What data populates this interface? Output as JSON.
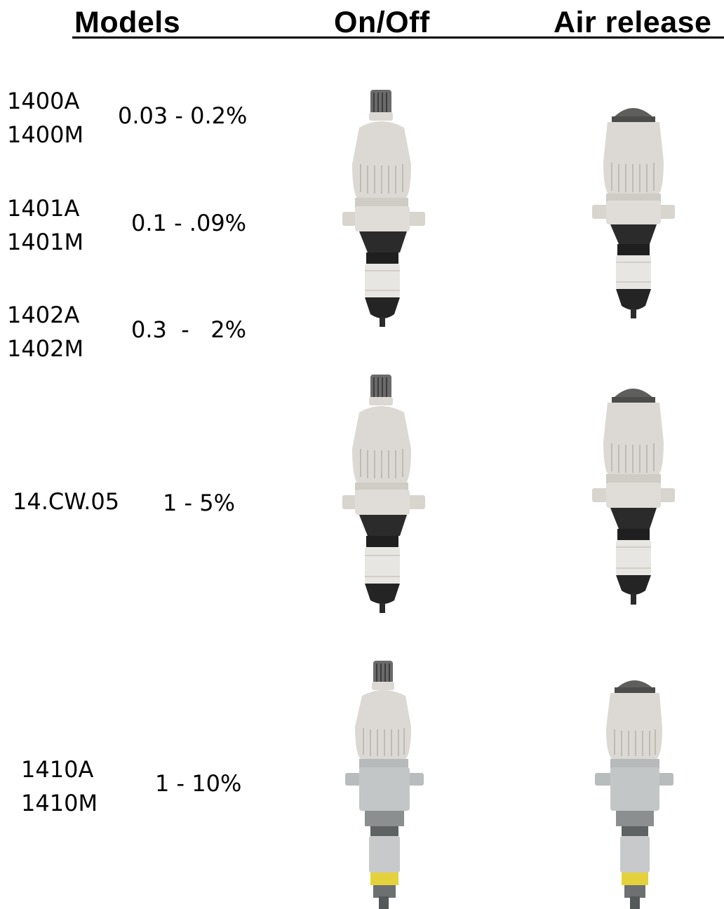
{
  "headers": {
    "models": "Models",
    "on_off": "On/Off",
    "air_release": "Air release"
  },
  "rows": [
    {
      "models": [
        "1400A",
        "1400M"
      ],
      "range": "0.03 - 0.2%"
    },
    {
      "models": [
        "1401A",
        "1401M"
      ],
      "range": "0.1 - .09%"
    },
    {
      "models": [
        "1402A",
        "1402M"
      ],
      "range": "0.3  -   2%"
    },
    {
      "models": [
        "14.CW.05"
      ],
      "range": "1 - 5%"
    },
    {
      "models": [
        "1410A",
        "1410M"
      ],
      "range": "1 - 10%"
    }
  ],
  "images": [
    {
      "name": "pump-1400-series-on-off",
      "column": "on_off",
      "variant": "black-cap"
    },
    {
      "name": "pump-1400-series-air-release",
      "column": "air_release",
      "variant": "black-cap"
    },
    {
      "name": "pump-14cw05-on-off",
      "column": "on_off",
      "variant": "black-cap"
    },
    {
      "name": "pump-14cw05-air-release",
      "column": "air_release",
      "variant": "black-cap"
    },
    {
      "name": "pump-1410-on-off",
      "column": "on_off",
      "variant": "grey-body-yellow-ring"
    },
    {
      "name": "pump-1410-air-release",
      "column": "air_release",
      "variant": "grey-body-yellow-ring"
    }
  ],
  "colors": {
    "pump_body": "#dcd9d4",
    "pump_dark": "#2b2b2b",
    "pump_grey": "#b9bcbd",
    "ring_yellow": "#e4d23c"
  }
}
